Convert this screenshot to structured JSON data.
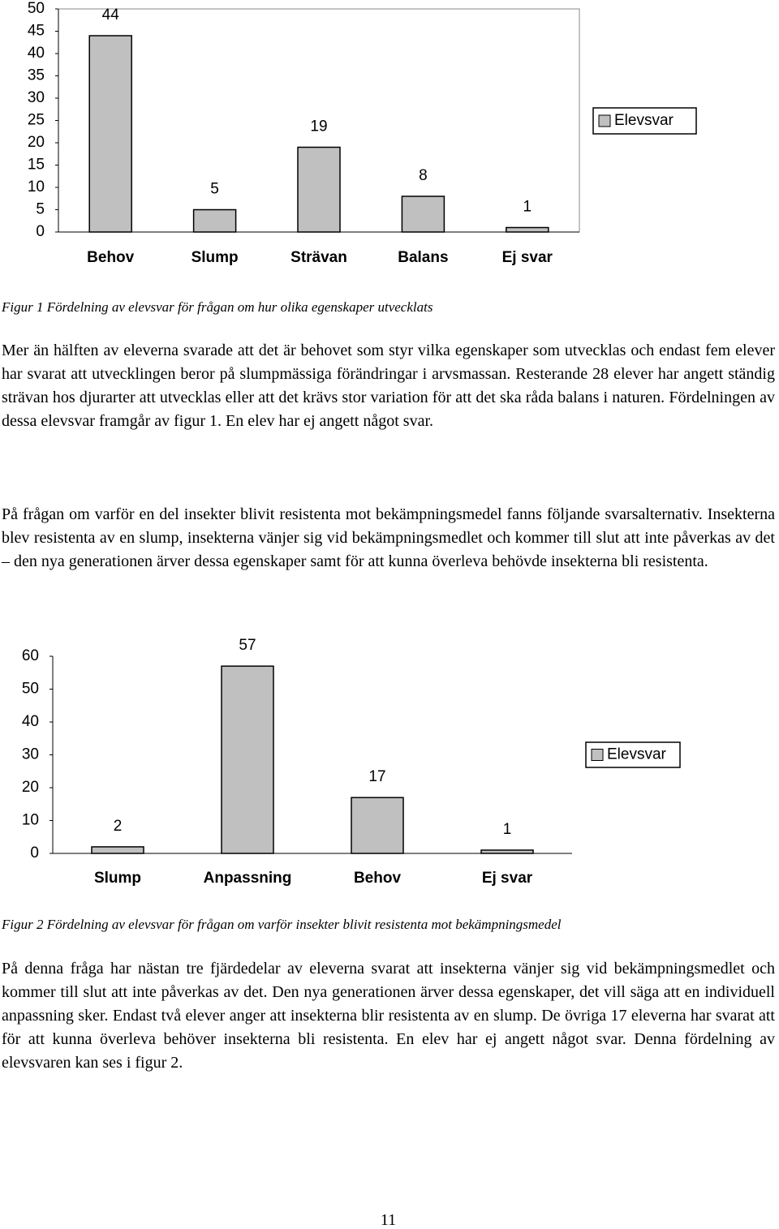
{
  "chart_data": [
    {
      "type": "bar",
      "categories": [
        "Behov",
        "Slump",
        "Strävan",
        "Balans",
        "Ej svar"
      ],
      "series": [
        {
          "name": "Elevsvar",
          "color": "#c0c0c0",
          "values": [
            44,
            5,
            19,
            8,
            1
          ]
        }
      ],
      "ylim": [
        0,
        50
      ],
      "yticks": [
        0,
        5,
        10,
        15,
        20,
        25,
        30,
        35,
        40,
        45,
        50
      ],
      "legend": "right",
      "frame": true
    },
    {
      "type": "bar",
      "categories": [
        "Slump",
        "Anpassning",
        "Behov",
        "Ej svar"
      ],
      "series": [
        {
          "name": "Elevsvar",
          "color": "#c0c0c0",
          "values": [
            2,
            57,
            17,
            1
          ]
        }
      ],
      "ylim": [
        0,
        60
      ],
      "yticks": [
        0,
        10,
        20,
        30,
        40,
        50,
        60
      ],
      "legend": "right",
      "frame": false
    }
  ],
  "captions": [
    "Figur 1 Fördelning av elevsvar för frågan om hur olika egenskaper utvecklats",
    "Figur 2 Fördelning av elevsvar för frågan om varför insekter blivit resistenta mot bekämpningsmedel"
  ],
  "paragraphs": [
    "Mer än hälften av eleverna svarade att det är behovet som styr vilka egenskaper som utvecklas och endast fem elever har svarat att utvecklingen beror på slumpmässiga förändringar i arvsmassan. Resterande 28 elever har angett ständig strävan hos djurarter att utvecklas eller att det krävs stor variation för att det ska råda balans i naturen. Fördelningen av dessa elevsvar framgår av figur 1. En elev har ej angett något svar.",
    "På frågan om varför en del insekter blivit resistenta mot bekämpningsmedel fanns följande svarsalternativ. Insekterna blev resistenta av en slump, insekterna vänjer sig vid bekämpningsmedlet och kommer till slut att inte påverkas av det – den nya generationen ärver dessa egenskaper samt för att kunna överleva behövde insekterna bli resistenta.",
    "På denna fråga har nästan tre fjärdedelar av eleverna svarat att insekterna vänjer sig vid bekämpningsmedlet och kommer till slut att inte påverkas av det. Den nya generationen ärver dessa egenskaper, det vill säga att en individuell anpassning sker. Endast två elever anger att insekterna blir resistenta av en slump. De övriga 17 eleverna har svarat att för att kunna överleva behöver insekterna bli resistenta. En elev har ej angett något svar. Denna fördelning av elevsvaren kan ses i figur 2."
  ],
  "page_number": "11"
}
